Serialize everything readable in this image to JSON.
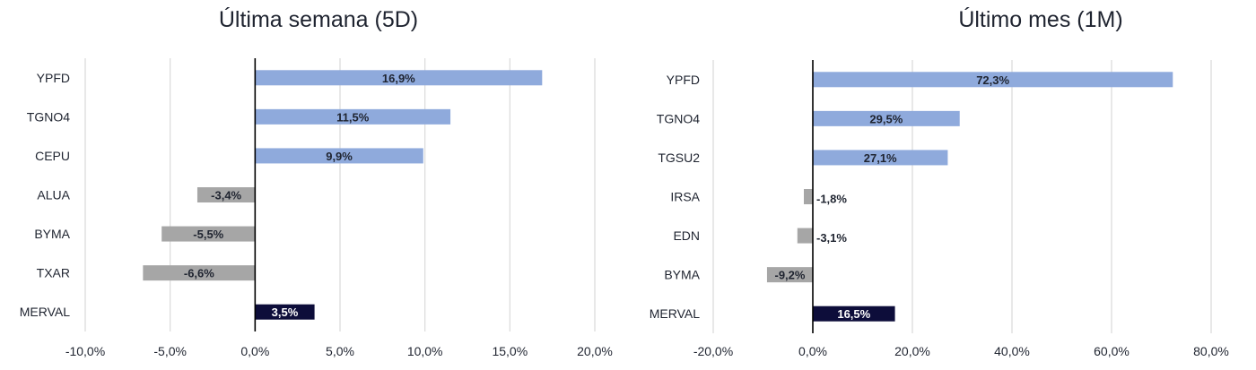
{
  "colors": {
    "positive": "#8faadc",
    "negative": "#a6a6a6",
    "index": "#0d0d3a",
    "grid": "#d9d9d9",
    "axis": "#000000",
    "label_dark": "#1f2430",
    "label_light": "#ffffff"
  },
  "chart_data": [
    {
      "type": "bar",
      "orientation": "horizontal",
      "title": "Última semana (5D)",
      "categories": [
        "YPFD",
        "TGNO4",
        "CEPU",
        "ALUA",
        "BYMA",
        "TXAR",
        "MERVAL"
      ],
      "values": [
        16.9,
        11.5,
        9.9,
        -3.4,
        -5.5,
        -6.6,
        3.5
      ],
      "data_labels": [
        "16,9%",
        "11,5%",
        "9,9%",
        "-3,4%",
        "-5,5%",
        "-6,6%",
        "3,5%"
      ],
      "xlim": [
        -10,
        20
      ],
      "xticks": [
        -10,
        -5,
        0,
        5,
        10,
        15,
        20
      ],
      "xtick_labels": [
        "-10,0%",
        "-5,0%",
        "0,0%",
        "5,0%",
        "10,0%",
        "15,0%",
        "20,0%"
      ],
      "grid": true,
      "highlight_category": "MERVAL"
    },
    {
      "type": "bar",
      "orientation": "horizontal",
      "title": "Último mes (1M)",
      "categories": [
        "YPFD",
        "TGNO4",
        "TGSU2",
        "IRSA",
        "EDN",
        "BYMA",
        "MERVAL"
      ],
      "values": [
        72.3,
        29.5,
        27.1,
        -1.8,
        -3.1,
        -9.2,
        16.5
      ],
      "data_labels": [
        "72,3%",
        "29,5%",
        "27,1%",
        "-1,8%",
        "-3,1%",
        "-9,2%",
        "16,5%"
      ],
      "xlim": [
        -20,
        80
      ],
      "xticks": [
        -20,
        0,
        20,
        40,
        60,
        80
      ],
      "xtick_labels": [
        "-20,0%",
        "0,0%",
        "20,0%",
        "40,0%",
        "60,0%",
        "80,0%"
      ],
      "grid": true,
      "highlight_category": "MERVAL"
    }
  ]
}
